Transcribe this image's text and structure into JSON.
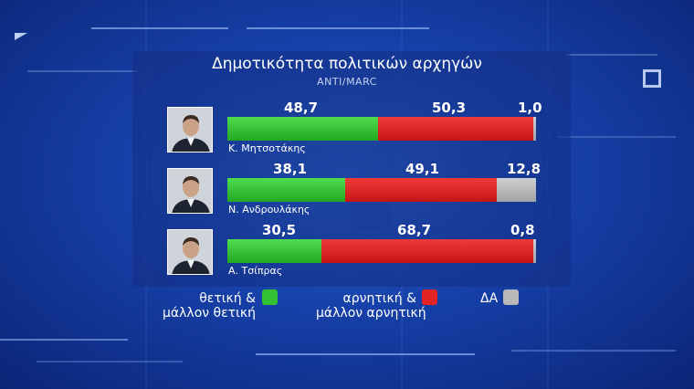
{
  "chart_data": {
    "type": "bar",
    "stacked": true,
    "orientation": "horizontal",
    "title": "Δημοτικότητα πολιτικών αρχηγών",
    "subtitle": "ANTI/MARC",
    "categories": [
      "Κ. Μητσοτάκης",
      "Ν. Ανδρουλάκης",
      "Α. Τσίπρας"
    ],
    "series": [
      {
        "name": "θετική & μάλλον θετική",
        "color": "#33c133",
        "values": [
          48.7,
          38.1,
          30.5
        ],
        "labels": [
          "48,7",
          "38,1",
          "30,5"
        ]
      },
      {
        "name": "αρνητική & μάλλον αρνητική",
        "color": "#e32424",
        "values": [
          50.3,
          49.1,
          68.7
        ],
        "labels": [
          "50,3",
          "49,1",
          "68,7"
        ]
      },
      {
        "name": "ΔΑ",
        "color": "#b9b9b9",
        "values": [
          1.0,
          12.8,
          0.8
        ],
        "labels": [
          "1,0",
          "12,8",
          "0,8"
        ]
      }
    ],
    "legend": {
      "positive_lines": [
        "θετική &",
        "μάλλον θετική"
      ],
      "negative_lines": [
        "αρνητική &",
        "μάλλον αρνητική"
      ],
      "dk": "ΔΑ"
    }
  },
  "icons": [
    "person-photo-icon",
    "square-outline-icon",
    "corner-triangle-icon"
  ]
}
